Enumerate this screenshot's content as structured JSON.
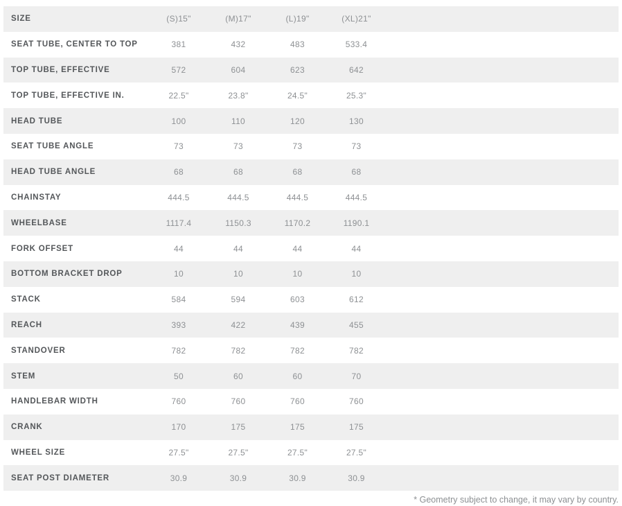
{
  "table": {
    "header_label": "SIZE",
    "columns": [
      "(S)15\"",
      "(M)17\"",
      "(L)19\"",
      "(XL)21\""
    ],
    "rows": [
      {
        "label": "SEAT TUBE, CENTER TO TOP",
        "values": [
          "381",
          "432",
          "483",
          "533.4"
        ]
      },
      {
        "label": "TOP TUBE, EFFECTIVE",
        "values": [
          "572",
          "604",
          "623",
          "642"
        ]
      },
      {
        "label": "TOP TUBE, EFFECTIVE IN.",
        "values": [
          "22.5\"",
          "23.8\"",
          "24.5\"",
          "25.3\""
        ]
      },
      {
        "label": "HEAD TUBE",
        "values": [
          "100",
          "110",
          "120",
          "130"
        ]
      },
      {
        "label": "SEAT TUBE ANGLE",
        "values": [
          "73",
          "73",
          "73",
          "73"
        ]
      },
      {
        "label": "HEAD TUBE ANGLE",
        "values": [
          "68",
          "68",
          "68",
          "68"
        ]
      },
      {
        "label": "CHAINSTAY",
        "values": [
          "444.5",
          "444.5",
          "444.5",
          "444.5"
        ]
      },
      {
        "label": "WHEELBASE",
        "values": [
          "1117.4",
          "1150.3",
          "1170.2",
          "1190.1"
        ]
      },
      {
        "label": "FORK OFFSET",
        "values": [
          "44",
          "44",
          "44",
          "44"
        ]
      },
      {
        "label": "BOTTOM BRACKET DROP",
        "values": [
          "10",
          "10",
          "10",
          "10"
        ]
      },
      {
        "label": "STACK",
        "values": [
          "584",
          "594",
          "603",
          "612"
        ]
      },
      {
        "label": "REACH",
        "values": [
          "393",
          "422",
          "439",
          "455"
        ]
      },
      {
        "label": "STANDOVER",
        "values": [
          "782",
          "782",
          "782",
          "782"
        ]
      },
      {
        "label": "STEM",
        "values": [
          "50",
          "60",
          "60",
          "70"
        ]
      },
      {
        "label": "HANDLEBAR WIDTH",
        "values": [
          "760",
          "760",
          "760",
          "760"
        ]
      },
      {
        "label": "CRANK",
        "values": [
          "170",
          "175",
          "175",
          "175"
        ]
      },
      {
        "label": "WHEEL SIZE",
        "values": [
          "27.5\"",
          "27.5\"",
          "27.5\"",
          "27.5\""
        ]
      },
      {
        "label": "SEAT POST DIAMETER",
        "values": [
          "30.9",
          "30.9",
          "30.9",
          "30.9"
        ]
      }
    ]
  },
  "footnote": "* Geometry subject to change, it may vary by country.",
  "colors": {
    "stripe": "#efefef",
    "label_text": "#54575a",
    "value_text": "#8d9093"
  }
}
